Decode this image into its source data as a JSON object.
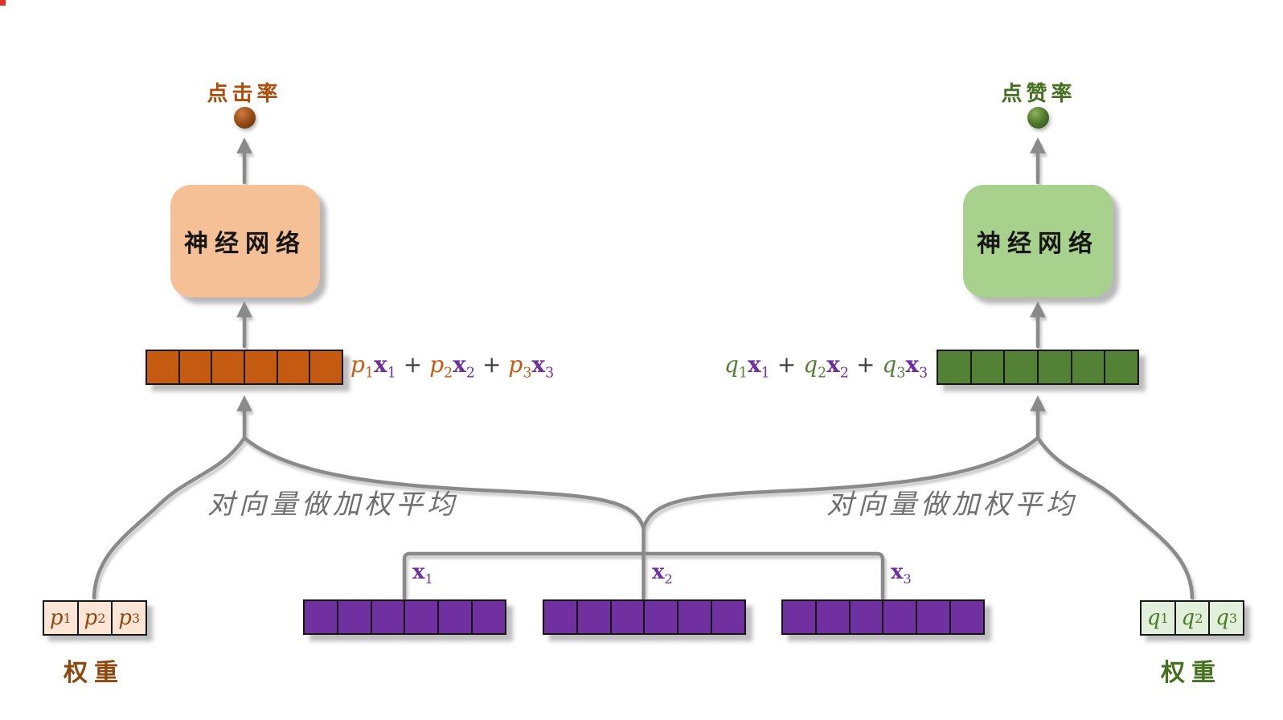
{
  "vector_cell_count": 6,
  "colors": {
    "ctr_accent": "#C55A11",
    "ctr_network_fill": "#F5C096",
    "ctr_weights_fill": "#FBE5D6",
    "ctr_text": "#AC4E0B",
    "like_accent": "#538135",
    "like_network_fill": "#A9D18E",
    "like_weights_fill": "#E2EFDA",
    "like_text": "#44701F",
    "input_purple": "#7030A0",
    "connector_gray": "#8A8A8A",
    "note_gray": "#6F6F6F"
  },
  "left_branch": {
    "output_label": "点击率",
    "network_label": "神经网络",
    "note": "对向量做加权平均",
    "weights_label": "权重",
    "weights": [
      {
        "base": "p",
        "sub": "1"
      },
      {
        "base": "p",
        "sub": "2"
      },
      {
        "base": "p",
        "sub": "3"
      }
    ],
    "formula_tokens": [
      {
        "t": "p",
        "s": "1",
        "r": "coef"
      },
      {
        "t": "x",
        "s": "1",
        "r": "vec"
      },
      {
        "t": "+",
        "s": "",
        "r": "op"
      },
      {
        "t": "p",
        "s": "2",
        "r": "coef"
      },
      {
        "t": "x",
        "s": "2",
        "r": "vec"
      },
      {
        "t": "+",
        "s": "",
        "r": "op"
      },
      {
        "t": "p",
        "s": "3",
        "r": "coef"
      },
      {
        "t": "x",
        "s": "3",
        "r": "vec"
      }
    ]
  },
  "right_branch": {
    "output_label": "点赞率",
    "network_label": "神经网络",
    "note": "对向量做加权平均",
    "weights_label": "权重",
    "weights": [
      {
        "base": "q",
        "sub": "1"
      },
      {
        "base": "q",
        "sub": "2"
      },
      {
        "base": "q",
        "sub": "3"
      }
    ],
    "formula_tokens": [
      {
        "t": "q",
        "s": "1",
        "r": "coef"
      },
      {
        "t": "x",
        "s": "1",
        "r": "vec"
      },
      {
        "t": "+",
        "s": "",
        "r": "op"
      },
      {
        "t": "q",
        "s": "2",
        "r": "coef"
      },
      {
        "t": "x",
        "s": "2",
        "r": "vec"
      },
      {
        "t": "+",
        "s": "",
        "r": "op"
      },
      {
        "t": "q",
        "s": "3",
        "r": "coef"
      },
      {
        "t": "x",
        "s": "3",
        "r": "vec"
      }
    ]
  },
  "inputs": {
    "items": [
      {
        "base": "x",
        "sub": "1"
      },
      {
        "base": "x",
        "sub": "2"
      },
      {
        "base": "x",
        "sub": "3"
      }
    ]
  }
}
